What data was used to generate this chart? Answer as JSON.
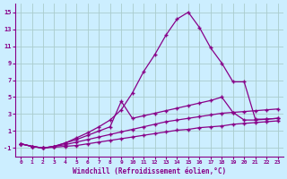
{
  "background_color": "#cceeff",
  "grid_color": "#aacccc",
  "line_color": "#880088",
  "xlim": [
    -0.5,
    23.5
  ],
  "ylim": [
    -2,
    16
  ],
  "xticks": [
    0,
    1,
    2,
    3,
    4,
    5,
    6,
    7,
    8,
    9,
    10,
    11,
    12,
    13,
    14,
    15,
    16,
    17,
    18,
    19,
    20,
    21,
    22,
    23
  ],
  "yticks": [
    -1,
    1,
    3,
    5,
    7,
    9,
    11,
    13,
    15
  ],
  "xlabel": "Windchill (Refroidissement éolien,°C)",
  "series": [
    {
      "x": [
        0,
        1,
        2,
        3,
        4,
        5,
        6,
        7,
        8,
        9,
        10,
        11,
        12,
        13,
        14,
        15,
        16,
        17,
        18,
        19,
        20,
        21,
        22,
        23
      ],
      "y": [
        -0.5,
        -0.8,
        -1.0,
        -0.9,
        -0.8,
        -0.7,
        -0.5,
        -0.3,
        -0.1,
        0.1,
        0.3,
        0.5,
        0.7,
        0.9,
        1.1,
        1.2,
        1.4,
        1.5,
        1.6,
        1.8,
        1.9,
        2.0,
        2.1,
        2.2
      ]
    },
    {
      "x": [
        0,
        1,
        2,
        3,
        4,
        5,
        6,
        7,
        8,
        9,
        10,
        11,
        12,
        13,
        14,
        15,
        16,
        17,
        18,
        19,
        20,
        21,
        22,
        23
      ],
      "y": [
        -0.5,
        -0.8,
        -1.0,
        -0.8,
        -0.6,
        -0.3,
        0.0,
        0.3,
        0.6,
        0.9,
        1.2,
        1.5,
        1.8,
        2.1,
        2.3,
        2.5,
        2.7,
        2.9,
        3.1,
        3.2,
        3.3,
        3.4,
        3.5,
        3.6
      ]
    },
    {
      "x": [
        0,
        1,
        2,
        3,
        4,
        5,
        6,
        7,
        8,
        9,
        10,
        11,
        12,
        13,
        14,
        15,
        16,
        17,
        18,
        19,
        20,
        21,
        22,
        23
      ],
      "y": [
        -0.5,
        -0.8,
        -1.0,
        -0.8,
        -0.4,
        0.0,
        0.5,
        1.0,
        1.5,
        4.5,
        2.5,
        2.8,
        3.1,
        3.4,
        3.7,
        4.0,
        4.3,
        4.6,
        5.0,
        3.2,
        2.3,
        2.3,
        2.4,
        2.5
      ]
    },
    {
      "x": [
        0,
        1,
        2,
        3,
        4,
        5,
        6,
        7,
        8,
        9,
        10,
        11,
        12,
        13,
        14,
        15,
        16,
        17,
        18,
        19,
        20,
        21,
        22,
        23
      ],
      "y": [
        -0.5,
        -0.8,
        -1.0,
        -0.8,
        -0.4,
        0.2,
        0.8,
        1.5,
        2.3,
        3.5,
        5.5,
        8.0,
        10.0,
        12.3,
        14.2,
        15.0,
        13.2,
        10.8,
        9.0,
        6.8,
        6.8,
        2.4,
        2.4,
        2.5
      ]
    }
  ]
}
